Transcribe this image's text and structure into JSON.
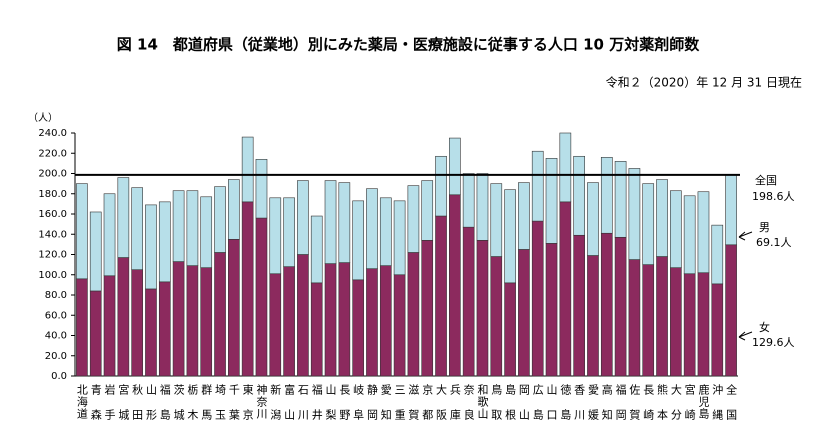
{
  "chart_data": {
    "type": "stacked_bar",
    "title": "図 14　都道府県（従業地）別にみた薬局・医療施設に従事する人口 10 万対薬剤師数",
    "subtitle": "令和２（2020）年 12 月 31 日現在",
    "y_unit": "（人）",
    "categories": [
      "北海道",
      "青森",
      "岩手",
      "宮城",
      "秋田",
      "山形",
      "福島",
      "茨城",
      "栃木",
      "群馬",
      "埼玉",
      "千葉",
      "東京",
      "神奈川",
      "新潟",
      "富山",
      "石川",
      "福井",
      "山梨",
      "長野",
      "岐阜",
      "静岡",
      "愛知",
      "三重",
      "滋賀",
      "京都",
      "大阪",
      "兵庫",
      "奈良",
      "和歌山",
      "鳥取",
      "島根",
      "岡山",
      "広島",
      "山口",
      "徳島",
      "香川",
      "愛媛",
      "高知",
      "福岡",
      "佐賀",
      "長崎",
      "熊本",
      "大分",
      "宮崎",
      "鹿児島",
      "沖縄",
      "全国"
    ],
    "series": [
      {
        "name": "女",
        "note": "129.6人",
        "color": "#8c2a5e",
        "values": [
          96,
          84,
          99,
          117,
          105,
          86,
          93,
          113,
          109,
          107,
          122,
          135,
          172,
          156,
          101,
          108,
          120,
          92,
          111,
          112,
          95,
          106,
          109,
          100,
          122,
          134,
          158,
          179,
          147,
          134,
          118,
          92,
          125,
          153,
          131,
          172,
          139,
          119,
          141,
          137,
          115,
          110,
          118,
          107,
          101,
          102,
          91,
          129.6
        ]
      },
      {
        "name": "男",
        "note": "69.1人",
        "color": "#b7dfe9",
        "values": [
          94,
          78,
          81,
          79,
          81,
          83,
          79,
          70,
          74,
          70,
          65,
          59,
          64,
          58,
          75,
          68,
          73,
          66,
          82,
          79,
          78,
          79,
          67,
          73,
          66,
          59,
          59,
          56,
          53,
          66,
          72,
          92,
          66,
          69,
          84,
          68,
          78,
          72,
          75,
          75,
          90,
          80,
          76,
          76,
          77,
          80,
          58,
          69.1
        ]
      }
    ],
    "ylim": [
      0,
      240
    ],
    "yticks": [
      {
        "value": 0,
        "label": "0.0"
      },
      {
        "value": 20,
        "label": "20.0"
      },
      {
        "value": 40,
        "label": "40.0"
      },
      {
        "value": 60,
        "label": "60.0"
      },
      {
        "value": 80,
        "label": "80.0"
      },
      {
        "value": 100,
        "label": "100.0"
      },
      {
        "value": 120,
        "label": "120.0"
      },
      {
        "value": 140,
        "label": "140.0"
      },
      {
        "value": 160,
        "label": "160.0"
      },
      {
        "value": 180,
        "label": "180.0"
      },
      {
        "value": 200,
        "label": "200.0"
      },
      {
        "value": 220,
        "label": "220.0"
      },
      {
        "value": 240,
        "label": "240.0"
      }
    ],
    "reference_line": {
      "name": "全国",
      "value": 198.6,
      "label": "198.6人"
    }
  }
}
